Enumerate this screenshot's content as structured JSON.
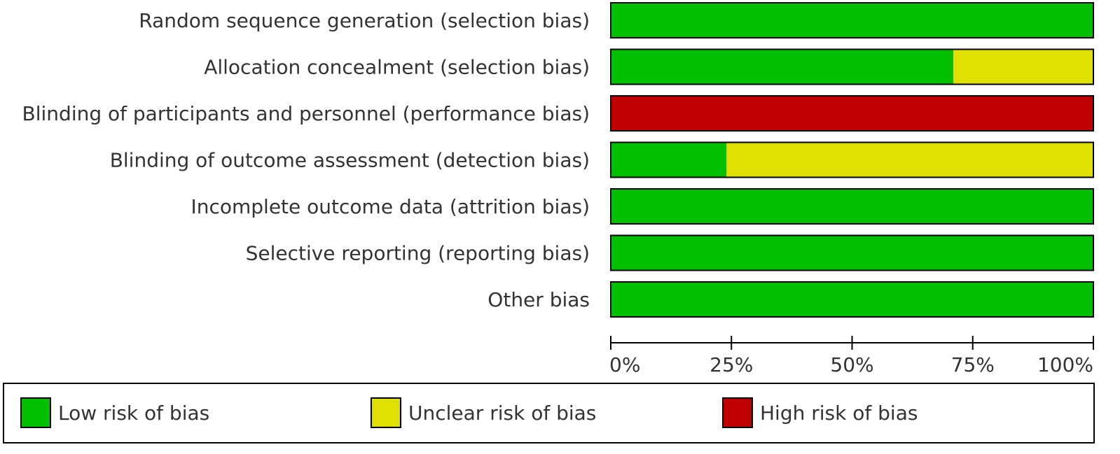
{
  "chart_data": {
    "type": "stacked-bar-horizontal",
    "categories": [
      "Random sequence generation (selection bias)",
      "Allocation concealment (selection bias)",
      "Blinding of participants and personnel (performance bias)",
      "Blinding of outcome assessment (detection bias)",
      "Incomplete outcome data (attrition bias)",
      "Selective reporting (reporting bias)",
      "Other bias"
    ],
    "series": [
      {
        "name": "Low risk of bias",
        "color": "#00c000",
        "values": [
          100,
          71,
          0,
          24,
          100,
          100,
          100
        ]
      },
      {
        "name": "Unclear risk of bias",
        "color": "#e0e000",
        "values": [
          0,
          29,
          0,
          76,
          0,
          0,
          0
        ]
      },
      {
        "name": "High risk of bias",
        "color": "#c00000",
        "values": [
          0,
          0,
          100,
          0,
          0,
          0,
          0
        ]
      }
    ],
    "xlim": [
      0,
      100
    ],
    "xticks": [
      {
        "value": 0,
        "label": "0%"
      },
      {
        "value": 25,
        "label": "25%"
      },
      {
        "value": 50,
        "label": "50%"
      },
      {
        "value": 75,
        "label": "75%"
      },
      {
        "value": 100,
        "label": "100%"
      }
    ],
    "legend": "bottom"
  }
}
